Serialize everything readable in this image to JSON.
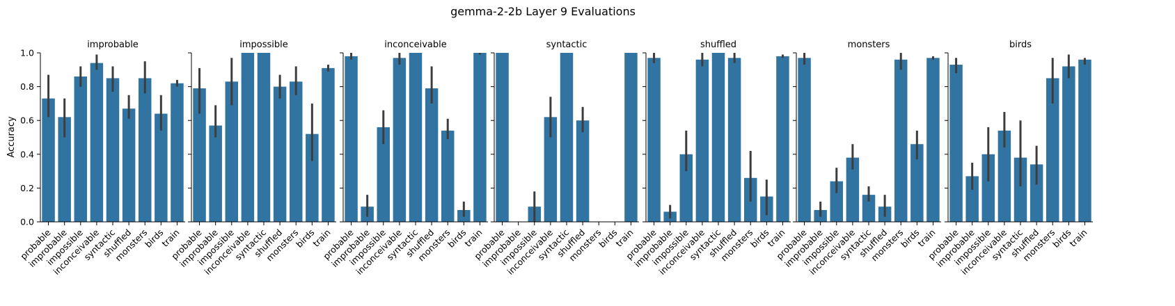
{
  "figure": {
    "title": "gemma-2-2b Layer 9 Evaluations",
    "ylabel": "Accuracy",
    "colors": {
      "bar": "#3274a1",
      "errorbar": "#3d3d3d",
      "axis": "#000000"
    }
  },
  "chart_data": {
    "type": "bar",
    "title": "gemma-2-2b Layer 9 Evaluations",
    "ylabel": "Accuracy",
    "ylim": [
      0,
      1
    ],
    "yticks": [
      "0.0",
      "0.2",
      "0.4",
      "0.6",
      "0.8",
      "1.0"
    ],
    "categories": [
      "probable",
      "improbable",
      "impossible",
      "inconceivable",
      "syntactic",
      "shuffled",
      "monsters",
      "birds",
      "train"
    ],
    "grid": false,
    "panels": [
      {
        "title": "improbable",
        "values": [
          0.73,
          0.62,
          0.86,
          0.94,
          0.85,
          0.67,
          0.85,
          0.64,
          0.82
        ],
        "errors": [
          [
            0.62,
            0.87
          ],
          [
            0.5,
            0.73
          ],
          [
            0.8,
            0.92
          ],
          [
            0.9,
            0.99
          ],
          [
            0.77,
            0.92
          ],
          [
            0.61,
            0.75
          ],
          [
            0.76,
            0.95
          ],
          [
            0.54,
            0.75
          ],
          [
            0.8,
            0.84
          ]
        ]
      },
      {
        "title": "impossible",
        "values": [
          0.79,
          0.57,
          0.83,
          1.0,
          1.0,
          0.8,
          0.83,
          0.52,
          0.91
        ],
        "errors": [
          [
            0.64,
            0.91
          ],
          [
            0.5,
            0.69
          ],
          [
            0.69,
            0.97
          ],
          null,
          null,
          [
            0.73,
            0.87
          ],
          [
            0.75,
            0.92
          ],
          [
            0.36,
            0.7
          ],
          [
            0.89,
            0.93
          ]
        ]
      },
      {
        "title": "inconceivable",
        "values": [
          0.98,
          0.09,
          0.56,
          0.97,
          1.0,
          0.79,
          0.54,
          0.07,
          1.0
        ],
        "errors": [
          [
            0.96,
            1.0
          ],
          [
            0.03,
            0.16
          ],
          [
            0.46,
            0.66
          ],
          [
            0.93,
            1.0
          ],
          null,
          [
            0.7,
            0.92
          ],
          [
            0.49,
            0.61
          ],
          [
            0.03,
            0.12
          ],
          [
            0.99,
            1.0
          ]
        ]
      },
      {
        "title": "syntactic",
        "values": [
          1.0,
          0.0,
          0.09,
          0.62,
          1.0,
          0.6,
          0.0,
          0.0,
          1.0
        ],
        "errors": [
          null,
          null,
          [
            0.0,
            0.18
          ],
          [
            0.5,
            0.74
          ],
          null,
          [
            0.53,
            0.68
          ],
          null,
          null,
          null
        ]
      },
      {
        "title": "shuffled",
        "values": [
          0.97,
          0.06,
          0.4,
          0.96,
          1.0,
          0.97,
          0.26,
          0.15,
          0.98
        ],
        "errors": [
          [
            0.94,
            1.0
          ],
          [
            0.02,
            0.1
          ],
          [
            0.3,
            0.54
          ],
          [
            0.92,
            1.0
          ],
          null,
          [
            0.94,
            1.0
          ],
          [
            0.12,
            0.42
          ],
          [
            0.04,
            0.25
          ],
          [
            0.97,
            0.99
          ]
        ]
      },
      {
        "title": "monsters",
        "values": [
          0.97,
          0.07,
          0.24,
          0.38,
          0.16,
          0.09,
          0.96,
          0.46,
          0.97
        ],
        "errors": [
          [
            0.93,
            1.0
          ],
          [
            0.03,
            0.12
          ],
          [
            0.17,
            0.32
          ],
          [
            0.31,
            0.46
          ],
          [
            0.12,
            0.21
          ],
          [
            0.03,
            0.16
          ],
          [
            0.9,
            1.0
          ],
          [
            0.37,
            0.54
          ],
          [
            0.96,
            0.98
          ]
        ]
      },
      {
        "title": "birds",
        "values": [
          0.93,
          0.27,
          0.4,
          0.54,
          0.38,
          0.34,
          0.85,
          0.92,
          0.96
        ],
        "errors": [
          [
            0.88,
            0.97
          ],
          [
            0.19,
            0.35
          ],
          [
            0.24,
            0.56
          ],
          [
            0.44,
            0.65
          ],
          [
            0.21,
            0.6
          ],
          [
            0.22,
            0.45
          ],
          [
            0.7,
            0.97
          ],
          [
            0.85,
            0.99
          ],
          [
            0.93,
            0.97
          ]
        ]
      }
    ]
  }
}
